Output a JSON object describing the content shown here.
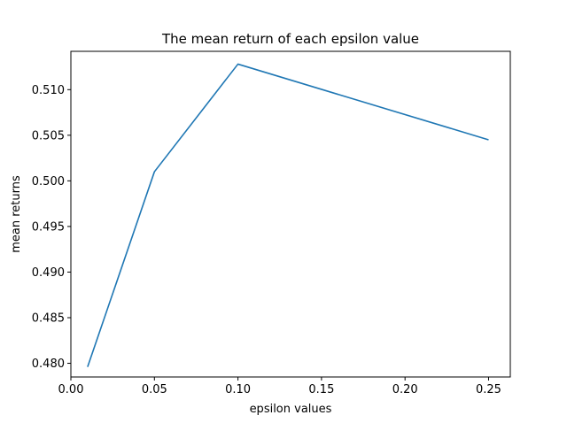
{
  "chart_data": {
    "type": "line",
    "title": "The mean return of each epsilon value",
    "xlabel": "epsilon values",
    "ylabel": "mean returns",
    "xlim": [
      0.0,
      0.263
    ],
    "ylim": [
      0.4785,
      0.5142
    ],
    "xticks": [
      0.0,
      0.05,
      0.1,
      0.15,
      0.2,
      0.25
    ],
    "xtick_labels": [
      "0.00",
      "0.05",
      "0.10",
      "0.15",
      "0.20",
      "0.25"
    ],
    "yticks": [
      0.48,
      0.485,
      0.49,
      0.495,
      0.5,
      0.505,
      0.51
    ],
    "ytick_labels": [
      "0.480",
      "0.485",
      "0.490",
      "0.495",
      "0.500",
      "0.505",
      "0.510"
    ],
    "grid": false,
    "series": [
      {
        "color": "#1f77b4",
        "x": [
          0.01,
          0.05,
          0.1,
          0.25
        ],
        "y": [
          0.4796,
          0.501,
          0.5128,
          0.5045
        ]
      }
    ]
  }
}
